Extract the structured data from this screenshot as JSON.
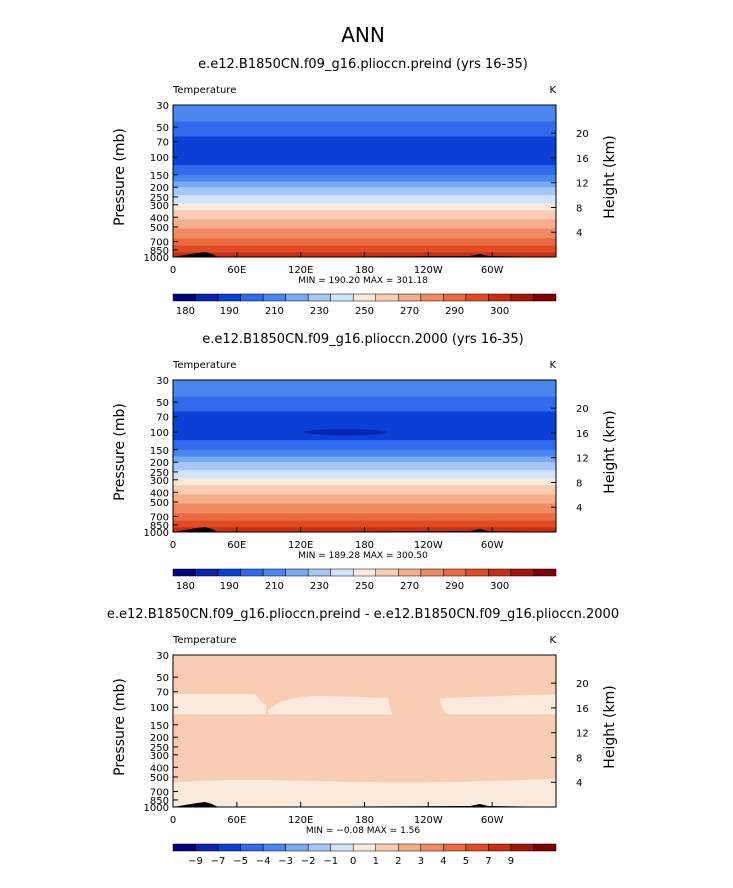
{
  "page_title": "ANN",
  "colors": {
    "ramp": [
      "#00007f",
      "#0a23b0",
      "#0a40d6",
      "#2f6bec",
      "#4a86f0",
      "#79a9f3",
      "#a6c8f7",
      "#d0e3fa",
      "#fbe9dc",
      "#f8cdb4",
      "#f5ad8a",
      "#f08a62",
      "#eb6a40",
      "#e24a23",
      "#c92d14",
      "#a3170b",
      "#7f0000"
    ]
  },
  "chart_data": [
    {
      "type": "heatmap",
      "title": "e.e12.B1850CN.f09_g16.plioccn.preind (yrs 16-35)",
      "variable": "Temperature",
      "units": "K",
      "ylabel": "Pressure (mb)",
      "ylabel_right": "Height (km)",
      "x_ticks": [
        "0",
        "60E",
        "120E",
        "180",
        "120W",
        "60W"
      ],
      "x_range": [
        0,
        360
      ],
      "y_ticks": [
        "30",
        "50",
        "70",
        "100",
        "150",
        "200",
        "250",
        "300",
        "400",
        "500",
        "700",
        "850",
        "1000"
      ],
      "y_ticks_right": [
        "20",
        "16",
        "12",
        "8",
        "4"
      ],
      "stats": "MIN = 190.20   MAX = 301.18",
      "min": 190.2,
      "max": 301.18,
      "colorbar_labels": [
        "180",
        "190",
        "210",
        "230",
        "250",
        "270",
        "290",
        "300"
      ]
    },
    {
      "type": "heatmap",
      "title": "e.e12.B1850CN.f09_g16.plioccn.2000 (yrs 16-35)",
      "variable": "Temperature",
      "units": "K",
      "ylabel": "Pressure (mb)",
      "ylabel_right": "Height (km)",
      "x_ticks": [
        "0",
        "60E",
        "120E",
        "180",
        "120W",
        "60W"
      ],
      "x_range": [
        0,
        360
      ],
      "y_ticks": [
        "30",
        "50",
        "70",
        "100",
        "150",
        "200",
        "250",
        "300",
        "400",
        "500",
        "700",
        "850",
        "1000"
      ],
      "y_ticks_right": [
        "20",
        "16",
        "12",
        "8",
        "4"
      ],
      "stats": "MIN = 189.28   MAX = 300.50",
      "min": 189.28,
      "max": 300.5,
      "colorbar_labels": [
        "180",
        "190",
        "210",
        "230",
        "250",
        "270",
        "290",
        "300"
      ]
    },
    {
      "type": "heatmap",
      "title": "e.e12.B1850CN.f09_g16.plioccn.preind - e.e12.B1850CN.f09_g16.plioccn.2000",
      "variable": "Temperature",
      "units": "K",
      "ylabel": "Pressure (mb)",
      "ylabel_right": "Height (km)",
      "x_ticks": [
        "0",
        "60E",
        "120E",
        "180",
        "120W",
        "60W"
      ],
      "x_range": [
        0,
        360
      ],
      "y_ticks": [
        "30",
        "50",
        "70",
        "100",
        "150",
        "200",
        "250",
        "300",
        "400",
        "500",
        "700",
        "850",
        "1000"
      ],
      "y_ticks_right": [
        "20",
        "16",
        "12",
        "8",
        "4"
      ],
      "stats": "MIN =  −0.08   MAX =   1.56",
      "min": -0.08,
      "max": 1.56,
      "colorbar_labels": [
        "−9",
        "−7",
        "−5",
        "−4",
        "−3",
        "−2",
        "−1",
        "0",
        "1",
        "2",
        "3",
        "4",
        "5",
        "7",
        "9"
      ]
    }
  ]
}
